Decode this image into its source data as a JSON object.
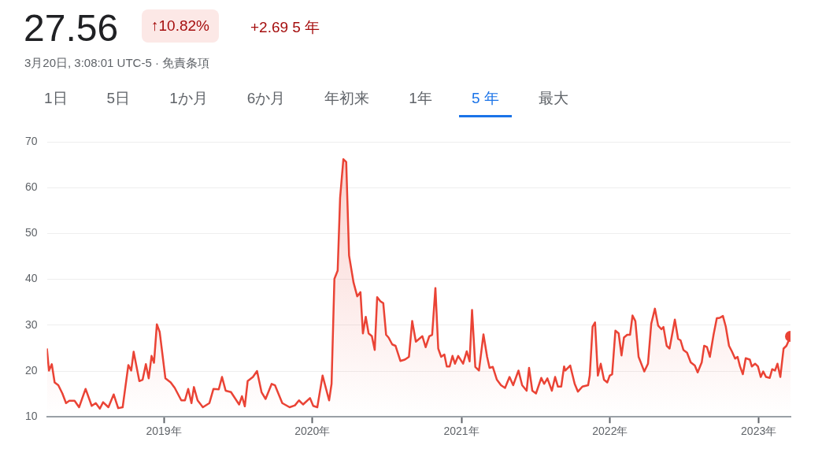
{
  "chart_data": {
    "type": "area",
    "title": "27.56",
    "subtitle": "3月20日, 3:08:01 UTC-5 · 免責条項",
    "annotations": [
      "↑10.82%",
      "+2.69 5 年",
      "1日",
      "5日",
      "1か月",
      "6か月",
      "年初来",
      "1年",
      "5 年",
      "最大"
    ],
    "x": [
      "2018-03-20",
      "2018-03-25",
      "2018-04-01",
      "2018-04-08",
      "2018-04-17",
      "2018-04-27",
      "2018-05-06",
      "2018-05-14",
      "2018-05-27",
      "2018-06-07",
      "2018-06-23",
      "2018-07-08",
      "2018-07-18",
      "2018-07-28",
      "2018-08-05",
      "2018-08-18",
      "2018-08-31",
      "2018-09-11",
      "2018-09-22",
      "2018-10-06",
      "2018-10-13",
      "2018-10-19",
      "2018-11-02",
      "2018-11-10",
      "2018-11-18",
      "2018-11-25",
      "2018-12-02",
      "2018-12-08",
      "2018-12-15",
      "2018-12-22",
      "2019-01-05",
      "2019-01-18",
      "2019-01-28",
      "2019-02-13",
      "2019-02-22",
      "2019-03-02",
      "2019-03-10",
      "2019-03-16",
      "2019-03-25",
      "2019-04-07",
      "2019-04-23",
      "2019-05-03",
      "2019-05-16",
      "2019-05-24",
      "2019-06-02",
      "2019-06-15",
      "2019-07-05",
      "2019-07-12",
      "2019-07-19",
      "2019-07-26",
      "2019-08-08",
      "2019-08-18",
      "2019-08-29",
      "2019-09-08",
      "2019-09-23",
      "2019-10-01",
      "2019-10-19",
      "2019-11-06",
      "2019-11-19",
      "2019-11-29",
      "2019-12-09",
      "2019-12-26",
      "2020-01-03",
      "2020-01-13",
      "2020-01-26",
      "2020-02-11",
      "2020-02-17",
      "2020-02-24",
      "2020-03-03",
      "2020-03-09",
      "2020-03-17",
      "2020-03-24",
      "2020-03-31",
      "2020-04-11",
      "2020-04-20",
      "2020-04-28",
      "2020-05-04",
      "2020-05-11",
      "2020-05-18",
      "2020-05-26",
      "2020-06-02",
      "2020-06-08",
      "2020-06-16",
      "2020-06-23",
      "2020-06-30",
      "2020-07-06",
      "2020-07-15",
      "2020-07-23",
      "2020-08-04",
      "2020-08-15",
      "2020-08-25",
      "2020-09-02",
      "2020-09-11",
      "2020-09-27",
      "2020-10-05",
      "2020-10-14",
      "2020-10-21",
      "2020-10-29",
      "2020-11-05",
      "2020-11-12",
      "2020-11-20",
      "2020-11-26",
      "2020-12-03",
      "2020-12-10",
      "2020-12-16",
      "2020-12-24",
      "2021-01-05",
      "2021-01-14",
      "2021-01-21",
      "2021-01-27",
      "2021-02-04",
      "2021-02-13",
      "2021-02-24",
      "2021-03-05",
      "2021-03-11",
      "2021-03-19",
      "2021-03-29",
      "2021-04-08",
      "2021-04-18",
      "2021-04-29",
      "2021-05-08",
      "2021-05-21",
      "2021-05-30",
      "2021-06-10",
      "2021-06-16",
      "2021-06-24",
      "2021-07-03",
      "2021-07-16",
      "2021-07-23",
      "2021-07-31",
      "2021-08-11",
      "2021-08-19",
      "2021-08-26",
      "2021-09-03",
      "2021-09-10",
      "2021-09-13",
      "2021-09-25",
      "2021-10-06",
      "2021-10-14",
      "2021-10-25",
      "2021-11-08",
      "2021-11-12",
      "2021-11-19",
      "2021-11-25",
      "2021-12-02",
      "2021-12-09",
      "2021-12-17",
      "2021-12-25",
      "2021-12-31",
      "2022-01-06",
      "2022-01-14",
      "2022-01-22",
      "2022-01-29",
      "2022-02-04",
      "2022-02-12",
      "2022-02-19",
      "2022-02-25",
      "2022-03-04",
      "2022-03-12",
      "2022-03-26",
      "2022-04-04",
      "2022-04-12",
      "2022-04-21",
      "2022-04-29",
      "2022-05-07",
      "2022-05-12",
      "2022-05-20",
      "2022-05-27",
      "2022-06-09",
      "2022-06-17",
      "2022-06-23",
      "2022-06-30",
      "2022-07-09",
      "2022-07-18",
      "2022-07-28",
      "2022-08-04",
      "2022-08-14",
      "2022-08-20",
      "2022-08-27",
      "2022-09-03",
      "2022-09-12",
      "2022-09-20",
      "2022-09-27",
      "2022-10-05",
      "2022-10-12",
      "2022-10-20",
      "2022-10-27",
      "2022-11-04",
      "2022-11-10",
      "2022-11-16",
      "2022-11-23",
      "2022-11-30",
      "2022-12-10",
      "2022-12-15",
      "2022-12-23",
      "2022-12-30",
      "2023-01-06",
      "2023-01-12",
      "2023-01-19",
      "2023-01-28",
      "2023-02-03",
      "2023-02-10",
      "2023-02-16",
      "2023-02-23",
      "2023-03-03",
      "2023-03-10",
      "2023-03-20"
    ],
    "series": [
      {
        "color": "#ea4335",
        "values": [
          24.9,
          20.1,
          21.5,
          17.5,
          16.9,
          15.1,
          13.0,
          13.5,
          13.5,
          12.1,
          16.1,
          12.4,
          13.0,
          11.8,
          13.2,
          12.1,
          14.9,
          11.9,
          12.1,
          21.3,
          20.1,
          24.2,
          17.8,
          18.1,
          21.5,
          18.4,
          23.3,
          21.8,
          30.2,
          28.5,
          18.4,
          17.5,
          16.3,
          13.6,
          13.6,
          16.1,
          13.0,
          16.5,
          13.6,
          12.1,
          13.0,
          16.1,
          16.0,
          18.7,
          15.7,
          15.4,
          12.7,
          14.5,
          12.3,
          17.8,
          18.7,
          20.0,
          15.4,
          13.9,
          17.2,
          16.9,
          13.0,
          12.1,
          12.5,
          13.6,
          12.7,
          14.1,
          12.4,
          12.1,
          19.0,
          13.6,
          17.2,
          40.1,
          41.9,
          57.8,
          66.2,
          65.6,
          45.2,
          39.3,
          36.3,
          37.2,
          28.2,
          31.8,
          28.2,
          27.6,
          24.6,
          36.1,
          35.2,
          34.8,
          27.9,
          27.3,
          25.8,
          25.5,
          22.2,
          22.5,
          23.1,
          30.9,
          26.4,
          27.6,
          25.2,
          27.6,
          27.9,
          38.1,
          24.9,
          23.1,
          23.6,
          21.0,
          21.0,
          23.3,
          21.6,
          23.3,
          21.6,
          24.3,
          22.1,
          33.3,
          20.9,
          20.1,
          28.0,
          23.1,
          20.7,
          20.9,
          18.1,
          16.9,
          16.3,
          18.7,
          16.9,
          20.1,
          16.9,
          15.7,
          20.7,
          15.7,
          15.1,
          18.5,
          17.2,
          18.4,
          15.7,
          18.7,
          16.6,
          16.6,
          21.0,
          20.1,
          21.2,
          17.2,
          15.5,
          16.6,
          16.9,
          19.0,
          29.7,
          30.6,
          19.0,
          21.6,
          18.1,
          17.5,
          19.0,
          19.3,
          28.8,
          28.2,
          23.4,
          27.3,
          27.9,
          27.9,
          32.1,
          30.9,
          23.1,
          19.9,
          21.6,
          30.3,
          33.6,
          29.9,
          29.1,
          29.6,
          25.5,
          24.9,
          31.2,
          27.0,
          26.7,
          24.6,
          24.0,
          21.9,
          21.2,
          19.7,
          21.9,
          25.5,
          25.2,
          23.1,
          27.9,
          31.5,
          31.6,
          32.0,
          29.7,
          25.5,
          24.3,
          22.7,
          23.1,
          21.0,
          19.3,
          22.8,
          22.5,
          21.0,
          21.6,
          21.0,
          18.7,
          19.9,
          18.7,
          18.5,
          20.4,
          20.1,
          21.6,
          18.7,
          24.9,
          25.5,
          27.56
        ]
      }
    ],
    "xlim": [
      "2018-03-20",
      "2023-03-20"
    ],
    "xticks": [
      {
        "value": "2019-01-01",
        "label": "2019年"
      },
      {
        "value": "2020-01-01",
        "label": "2020年"
      },
      {
        "value": "2021-01-01",
        "label": "2021年"
      },
      {
        "value": "2022-01-01",
        "label": "2022年"
      },
      {
        "value": "2023-01-01",
        "label": "2023年"
      }
    ],
    "ylim": [
      10,
      70
    ],
    "yticks": [
      10,
      20,
      30,
      40,
      50,
      60,
      70
    ],
    "grid": "y",
    "legend": false
  }
}
